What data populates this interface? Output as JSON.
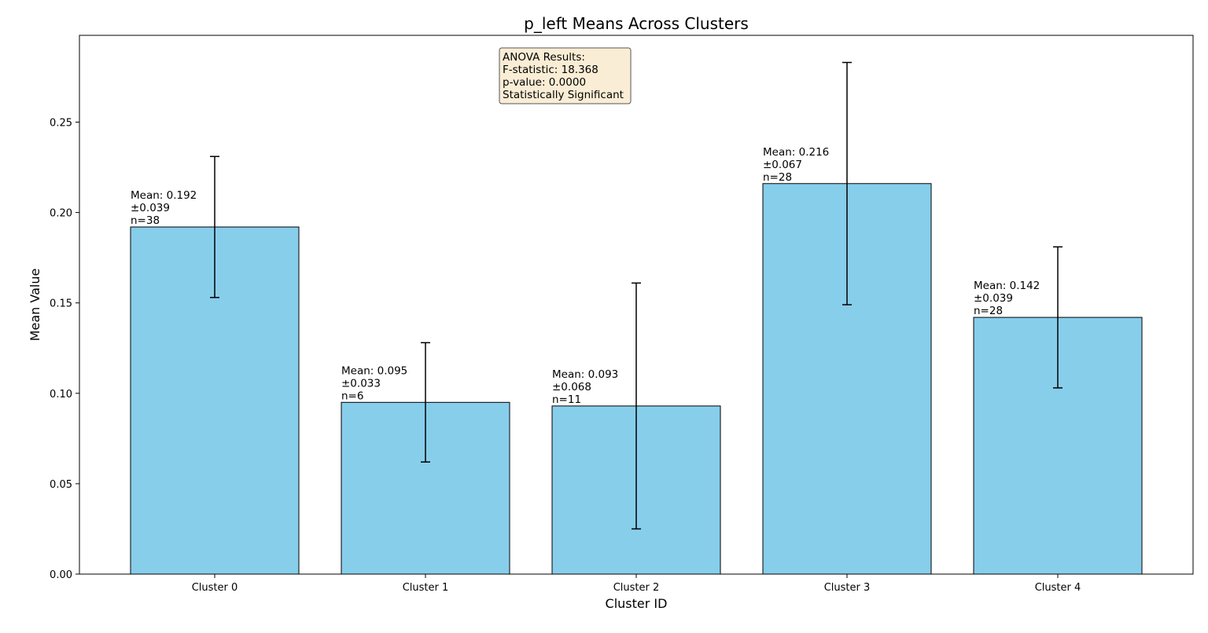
{
  "chart_data": {
    "type": "bar",
    "title": "p_left Means Across Clusters",
    "xlabel": "Cluster ID",
    "ylabel": "Mean Value",
    "categories": [
      "Cluster 0",
      "Cluster 1",
      "Cluster 2",
      "Cluster 3",
      "Cluster 4"
    ],
    "values": [
      0.192,
      0.095,
      0.093,
      0.216,
      0.142
    ],
    "errors": [
      0.039,
      0.033,
      0.068,
      0.067,
      0.039
    ],
    "counts": [
      38,
      6,
      11,
      28,
      28
    ],
    "bar_labels": [
      [
        "Mean: 0.192",
        "±0.039",
        "n=38"
      ],
      [
        "Mean: 0.095",
        "±0.033",
        "n=6"
      ],
      [
        "Mean: 0.093",
        "±0.068",
        "n=11"
      ],
      [
        "Mean: 0.216",
        "±0.067",
        "n=28"
      ],
      [
        "Mean: 0.142",
        "±0.039",
        "n=28"
      ]
    ],
    "yticks": [
      0.0,
      0.05,
      0.1,
      0.15,
      0.2,
      0.25
    ],
    "ytick_labels": [
      "0.00",
      "0.05",
      "0.10",
      "0.15",
      "0.20",
      "0.25"
    ],
    "ylim": [
      0,
      0.298
    ],
    "grid": false,
    "colors": {
      "bar_fill": "#87ceeb",
      "bar_edge": "#000000",
      "annotation_box_fill": "#f5deb3",
      "annotation_box_edge": "#555555"
    },
    "annotation": {
      "lines": [
        "ANOVA Results:",
        "F-statistic: 18.368",
        "p-value: 0.0000",
        "Statistically Significant"
      ],
      "placement": "top-center"
    }
  }
}
